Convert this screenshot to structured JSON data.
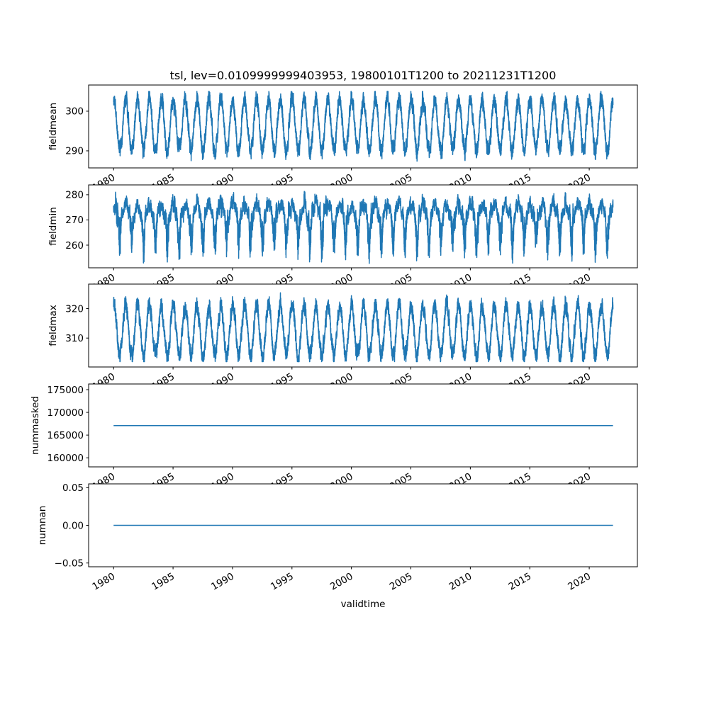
{
  "chart_data": {
    "type": "line",
    "title": "tsl, lev=0.0109999999403953, 19800101T1200 to 20211231T1200",
    "xlabel": "validtime",
    "x_range": [
      1980.0,
      2022.0
    ],
    "xlim": [
      1977.9,
      2024.05
    ],
    "x_ticks": [
      1980,
      1985,
      1990,
      1995,
      2000,
      2005,
      2010,
      2015,
      2020
    ],
    "x_tick_labels": [
      "1980",
      "1985",
      "1990",
      "1995",
      "2000",
      "2005",
      "2010",
      "2015",
      "2020"
    ],
    "sampling": "daily",
    "line_color": "#1f77b4",
    "panels": [
      {
        "ylabel": "fieldmean",
        "ylim": [
          285.7,
          306.6
        ],
        "y_ticks": [
          290,
          300
        ],
        "y_tick_labels": [
          "290",
          "300"
        ],
        "model": {
          "kind": "seasonal",
          "base": 296.5,
          "amplitude": 6.5,
          "noise": 1.6,
          "low_extra": 0,
          "approx_min": 287,
          "approx_max": 305
        }
      },
      {
        "ylabel": "fieldmin",
        "ylim": [
          251.0,
          283.9
        ],
        "y_ticks": [
          260,
          270,
          280
        ],
        "y_tick_labels": [
          "260",
          "270",
          "280"
        ],
        "model": {
          "kind": "skewed",
          "base": 272.5,
          "amplitude": 4.0,
          "noise": 2.0,
          "low_extra": 11,
          "approx_min": 252.5,
          "approx_max": 282.5
        }
      },
      {
        "ylabel": "fieldmax",
        "ylim": [
          300.2,
          328.3
        ],
        "y_ticks": [
          310,
          320
        ],
        "y_tick_labels": [
          "310",
          "320"
        ],
        "model": {
          "kind": "seasonal",
          "base": 312.5,
          "amplitude": 8.5,
          "noise": 2.2,
          "low_extra": 0,
          "approx_min": 302,
          "approx_max": 327
        }
      },
      {
        "ylabel": "nummasked",
        "ylim": [
          158000,
          176250
        ],
        "y_ticks": [
          160000,
          165000,
          170000,
          175000
        ],
        "y_tick_labels": [
          "160000",
          "165000",
          "170000",
          "175000"
        ],
        "model": {
          "kind": "constant",
          "value": 167100
        }
      },
      {
        "ylabel": "numnan",
        "ylim": [
          -0.055,
          0.055
        ],
        "y_ticks": [
          -0.05,
          0.0,
          0.05
        ],
        "y_tick_labels": [
          "−0.05",
          "0.00",
          "0.05"
        ],
        "model": {
          "kind": "constant",
          "value": 0
        }
      }
    ]
  }
}
